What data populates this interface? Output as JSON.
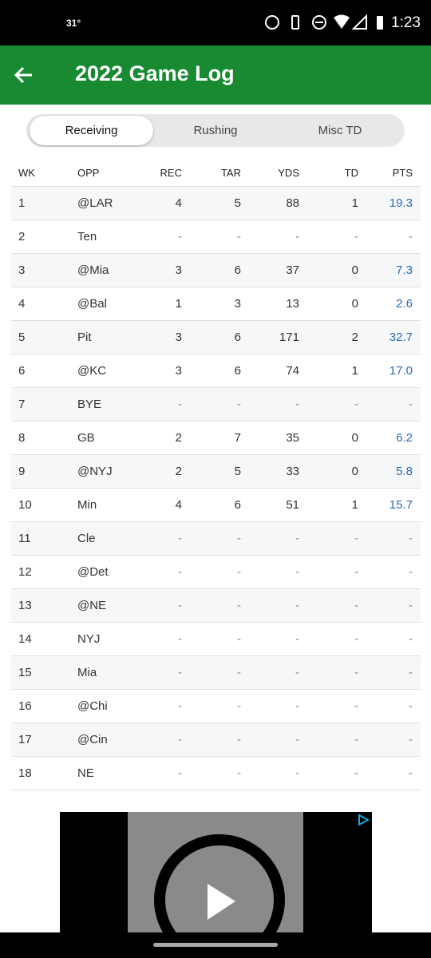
{
  "status": {
    "temp": "31°",
    "time": "1:23"
  },
  "header": {
    "title": "2022 Game Log"
  },
  "tabs": [
    "Receiving",
    "Rushing",
    "Misc TD"
  ],
  "table": {
    "columns": [
      "WK",
      "OPP",
      "REC",
      "TAR",
      "YDS",
      "TD",
      "PTS"
    ],
    "rows": [
      [
        "1",
        "@LAR",
        "4",
        "5",
        "88",
        "1",
        "19.3"
      ],
      [
        "2",
        "Ten",
        "-",
        "-",
        "-",
        "-",
        "-"
      ],
      [
        "3",
        "@Mia",
        "3",
        "6",
        "37",
        "0",
        "7.3"
      ],
      [
        "4",
        "@Bal",
        "1",
        "3",
        "13",
        "0",
        "2.6"
      ],
      [
        "5",
        "Pit",
        "3",
        "6",
        "171",
        "2",
        "32.7"
      ],
      [
        "6",
        "@KC",
        "3",
        "6",
        "74",
        "1",
        "17.0"
      ],
      [
        "7",
        "BYE",
        "-",
        "-",
        "-",
        "-",
        "-"
      ],
      [
        "8",
        "GB",
        "2",
        "7",
        "35",
        "0",
        "6.2"
      ],
      [
        "9",
        "@NYJ",
        "2",
        "5",
        "33",
        "0",
        "5.8"
      ],
      [
        "10",
        "Min",
        "4",
        "6",
        "51",
        "1",
        "15.7"
      ],
      [
        "11",
        "Cle",
        "-",
        "-",
        "-",
        "-",
        "-"
      ],
      [
        "12",
        "@Det",
        "-",
        "-",
        "-",
        "-",
        "-"
      ],
      [
        "13",
        "@NE",
        "-",
        "-",
        "-",
        "-",
        "-"
      ],
      [
        "14",
        "NYJ",
        "-",
        "-",
        "-",
        "-",
        "-"
      ],
      [
        "15",
        "Mia",
        "-",
        "-",
        "-",
        "-",
        "-"
      ],
      [
        "16",
        "@Chi",
        "-",
        "-",
        "-",
        "-",
        "-"
      ],
      [
        "17",
        "@Cin",
        "-",
        "-",
        "-",
        "-",
        "-"
      ],
      [
        "18",
        "NE",
        "-",
        "-",
        "-",
        "-",
        "-"
      ]
    ]
  }
}
